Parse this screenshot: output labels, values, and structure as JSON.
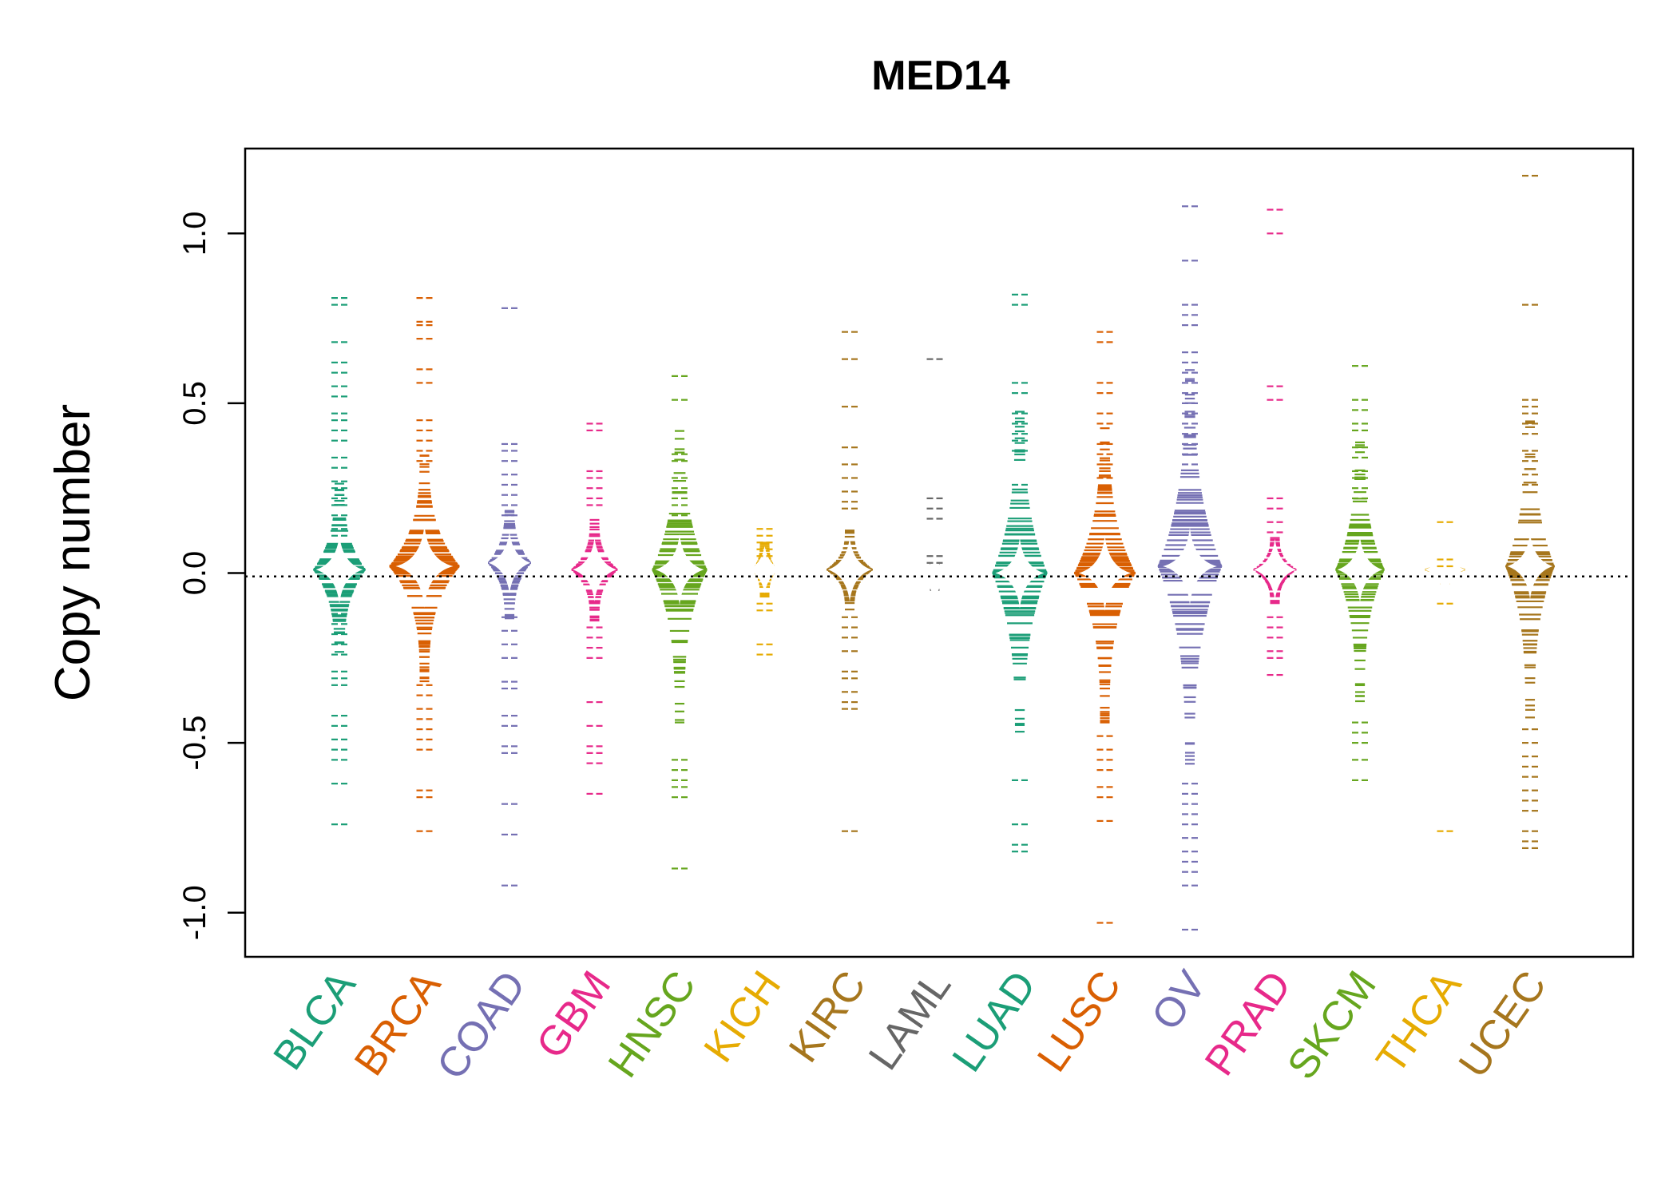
{
  "chart_data": {
    "type": "beanplot",
    "title": "MED14",
    "xlabel": "",
    "ylabel": "Copy number",
    "ylim": [
      -1.13,
      1.25
    ],
    "yticks": [
      "-1.0",
      "-0.5",
      "0.0",
      "0.5",
      "1.0"
    ],
    "ytick_values": [
      -1.0,
      -0.5,
      0.0,
      0.5,
      1.0
    ],
    "reference_line": -0.01,
    "grid": false,
    "legend": "none",
    "series": [
      {
        "name": "BLCA",
        "color": "#1B9E77",
        "mean": 0.01,
        "spread": 0.27,
        "density": 0.7,
        "outliers": [
          0.81,
          0.79,
          0.68,
          0.62,
          0.59,
          0.55,
          0.52,
          0.47,
          0.45,
          0.42,
          0.39,
          0.34,
          0.31,
          0.27,
          0.25,
          0.22,
          0.2,
          0.17,
          0.13,
          0.11,
          -0.12,
          -0.15,
          -0.18,
          -0.21,
          -0.24,
          -0.29,
          -0.31,
          -0.33,
          -0.42,
          -0.45,
          -0.49,
          -0.52,
          -0.55,
          -0.62,
          -0.74
        ]
      },
      {
        "name": "BRCA",
        "color": "#D95F02",
        "mean": 0.02,
        "spread": 0.34,
        "density": 1.0,
        "outliers": [
          0.81,
          0.74,
          0.73,
          0.69,
          0.6,
          0.56,
          0.45,
          0.42,
          0.39,
          0.36,
          0.33,
          -0.33,
          -0.36,
          -0.4,
          -0.43,
          -0.46,
          -0.49,
          -0.52,
          -0.64,
          -0.66,
          -0.76
        ]
      },
      {
        "name": "COAD",
        "color": "#7570B3",
        "mean": 0.03,
        "spread": 0.18,
        "density": 0.55,
        "outliers": [
          0.78,
          0.38,
          0.36,
          0.33,
          0.29,
          0.26,
          0.23,
          0.2,
          0.17,
          -0.13,
          -0.17,
          -0.21,
          -0.25,
          -0.32,
          -0.34,
          -0.42,
          -0.45,
          -0.51,
          -0.53,
          -0.68,
          -0.77,
          -0.92
        ]
      },
      {
        "name": "GBM",
        "color": "#E7298A",
        "mean": 0.01,
        "spread": 0.15,
        "density": 0.6,
        "outliers": [
          0.44,
          0.42,
          0.3,
          0.28,
          0.25,
          0.22,
          0.2,
          -0.16,
          -0.19,
          -0.22,
          -0.25,
          -0.38,
          -0.45,
          -0.51,
          -0.53,
          -0.56,
          -0.65
        ]
      },
      {
        "name": "HNSC",
        "color": "#66A61E",
        "mean": 0.01,
        "spread": 0.45,
        "density": 0.75,
        "outliers": [
          0.58,
          0.51,
          0.35,
          0.33,
          0.28,
          0.25,
          0.22,
          0.2,
          0.17,
          -0.55,
          -0.58,
          -0.61,
          -0.63,
          -0.66,
          -0.87
        ]
      },
      {
        "name": "KICH",
        "color": "#E6AB02",
        "mean": 0.01,
        "spread": 0.08,
        "density": 0.25,
        "outliers": [
          0.13,
          0.11,
          0.09,
          0.07,
          0.05,
          -0.09,
          -0.11,
          -0.21,
          -0.24
        ]
      },
      {
        "name": "KIRC",
        "color": "#A6761D",
        "mean": 0.01,
        "spread": 0.12,
        "density": 0.6,
        "outliers": [
          0.71,
          0.63,
          0.49,
          0.37,
          0.32,
          0.28,
          0.24,
          0.21,
          0.19,
          -0.13,
          -0.16,
          -0.19,
          -0.23,
          -0.29,
          -0.31,
          -0.35,
          -0.38,
          -0.4,
          -0.76
        ]
      },
      {
        "name": "LAML",
        "color": "#666666",
        "mean": -0.01,
        "spread": 0.04,
        "density": 0.35,
        "outliers": [
          0.63,
          0.22,
          0.19,
          0.16,
          0.05,
          0.03
        ]
      },
      {
        "name": "LUAD",
        "color": "#1B9E77",
        "mean": 0.0,
        "spread": 0.5,
        "density": 0.75,
        "outliers": [
          0.82,
          0.79,
          0.56,
          0.53,
          0.47,
          0.44,
          0.41,
          0.39,
          0.36,
          0.26,
          -0.61,
          -0.74,
          -0.8,
          -0.82
        ]
      },
      {
        "name": "LUSC",
        "color": "#D95F02",
        "mean": 0.0,
        "spread": 0.45,
        "density": 0.85,
        "outliers": [
          0.71,
          0.68,
          0.56,
          0.53,
          0.47,
          0.44,
          0.38,
          0.35,
          0.32,
          0.28,
          -0.48,
          -0.52,
          -0.55,
          -0.58,
          -0.63,
          -0.66,
          -0.73,
          -1.03
        ]
      },
      {
        "name": "OV",
        "color": "#7570B3",
        "mean": 0.02,
        "spread": 0.6,
        "density": 0.9,
        "outliers": [
          1.08,
          0.92,
          0.79,
          0.76,
          0.73,
          0.65,
          0.62,
          0.59,
          0.56,
          0.53,
          0.5,
          0.47,
          0.44,
          0.41,
          0.38,
          0.35,
          0.32,
          -0.62,
          -0.65,
          -0.68,
          -0.71,
          -0.74,
          -0.78,
          -0.82,
          -0.85,
          -0.88,
          -0.92,
          -1.05
        ]
      },
      {
        "name": "PRAD",
        "color": "#E7298A",
        "mean": 0.01,
        "spread": 0.1,
        "density": 0.55,
        "outliers": [
          1.07,
          1.0,
          0.55,
          0.51,
          0.22,
          0.19,
          0.15,
          0.12,
          -0.13,
          -0.16,
          -0.19,
          -0.23,
          -0.25,
          -0.3
        ]
      },
      {
        "name": "SKCM",
        "color": "#66A61E",
        "mean": 0.01,
        "spread": 0.4,
        "density": 0.65,
        "outliers": [
          0.61,
          0.51,
          0.48,
          0.44,
          0.42,
          0.37,
          0.34,
          0.3,
          0.28,
          0.25,
          0.22,
          -0.44,
          -0.47,
          -0.5,
          -0.55,
          -0.61
        ]
      },
      {
        "name": "THCA",
        "color": "#E6AB02",
        "mean": 0.01,
        "spread": 0.04,
        "density": 0.5,
        "outliers": [
          0.15,
          0.04,
          0.02,
          -0.09,
          -0.76
        ]
      },
      {
        "name": "UCEC",
        "color": "#A6761D",
        "mean": 0.02,
        "spread": 0.45,
        "density": 0.65,
        "outliers": [
          1.17,
          0.79,
          0.51,
          0.49,
          0.47,
          0.44,
          0.41,
          0.36,
          0.33,
          0.29,
          0.26,
          -0.46,
          -0.5,
          -0.54,
          -0.57,
          -0.6,
          -0.64,
          -0.67,
          -0.7,
          -0.76,
          -0.79,
          -0.81
        ]
      }
    ]
  }
}
